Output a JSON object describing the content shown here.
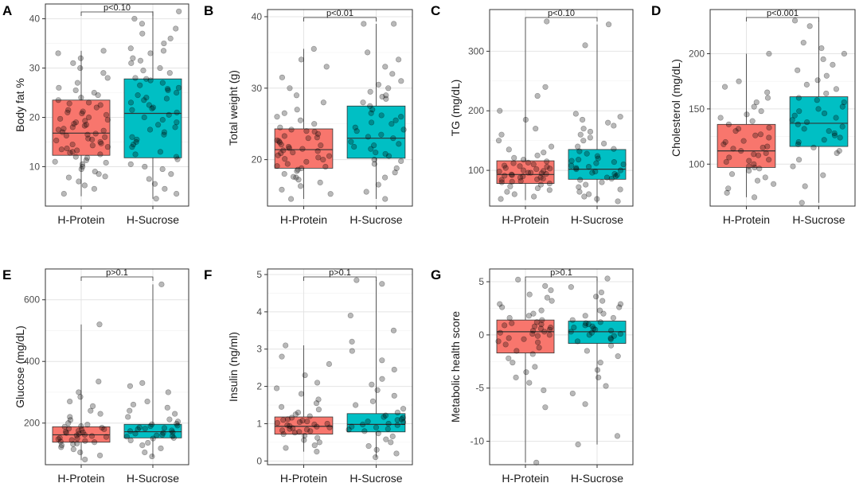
{
  "figure": {
    "fill_colors": [
      "#F8766D",
      "#00BFC4"
    ],
    "point_color": "#000000"
  },
  "chart_data": [
    {
      "id": "A",
      "type": "box",
      "panel": "A",
      "categories": [
        "H-Protein",
        "H-Sucrose"
      ],
      "ylabel": "Body fat %",
      "ylim": [
        2,
        43
      ],
      "yticks": [
        10,
        20,
        30,
        40
      ],
      "boxes": [
        {
          "name": "H-Protein",
          "q1": 12.3,
          "median": 16.8,
          "q3": 23.5,
          "min": 4.0,
          "max": 33.5
        },
        {
          "name": "H-Sucrose",
          "q1": 11.8,
          "median": 20.8,
          "q3": 27.8,
          "min": 3.5,
          "max": 41.5
        }
      ],
      "significance": "p<0.10",
      "jitter": [
        [
          4.5,
          5.5,
          6.2,
          7.0,
          7.8,
          8.5,
          9.0,
          9.5,
          10.0,
          10.5,
          11.0,
          11.3,
          11.8,
          12.0,
          12.5,
          13.0,
          13.3,
          13.7,
          14.0,
          14.3,
          14.7,
          15.0,
          15.3,
          15.7,
          16.0,
          16.3,
          16.7,
          17.0,
          17.3,
          17.7,
          18.0,
          18.3,
          18.7,
          19.0,
          19.3,
          19.7,
          20.0,
          20.5,
          21.0,
          21.5,
          22.0,
          22.5,
          23.0,
          23.5,
          24.0,
          24.5,
          25.0,
          26.0,
          27.0,
          28.0,
          29.0,
          30.0,
          31.0,
          32.0,
          33.0,
          33.5,
          12.8,
          14.5,
          16.5,
          18.5,
          20.8,
          22.8,
          8.0,
          10.8,
          13.5,
          15.5,
          17.5,
          19.5,
          21.2,
          25.5
        ],
        [
          3.5,
          4.5,
          5.5,
          6.5,
          7.5,
          8.5,
          9.5,
          10.5,
          11.5,
          12.0,
          13.0,
          14.0,
          15.0,
          16.0,
          17.0,
          18.0,
          19.0,
          20.0,
          20.5,
          21.0,
          21.5,
          22.0,
          22.5,
          23.0,
          23.5,
          24.0,
          24.5,
          25.0,
          25.5,
          26.0,
          26.5,
          27.0,
          27.5,
          28.0,
          29.0,
          30.0,
          31.0,
          32.0,
          33.0,
          34.0,
          35.0,
          36.0,
          37.0,
          38.0,
          39.0,
          40.0,
          41.5,
          12.5,
          14.5,
          16.5,
          18.5,
          19.5,
          21.8,
          23.8,
          25.8,
          27.8,
          10.0,
          15.5,
          17.5,
          29.5,
          31.5,
          33.5
        ]
      ]
    },
    {
      "id": "B",
      "type": "box",
      "panel": "B",
      "categories": [
        "H-Protein",
        "H-Sucrose"
      ],
      "ylabel": "Total weight (g)",
      "ylim": [
        13.5,
        41
      ],
      "yticks": [
        20,
        30,
        40
      ],
      "boxes": [
        {
          "name": "H-Protein",
          "q1": 18.8,
          "median": 21.4,
          "q3": 24.3,
          "min": 14.5,
          "max": 35.5
        },
        {
          "name": "H-Sucrose",
          "q1": 20.2,
          "median": 23.0,
          "q3": 27.5,
          "min": 14.5,
          "max": 39.0
        }
      ],
      "significance": "p<0.01",
      "jitter": [
        [
          14.5,
          15.2,
          15.8,
          16.3,
          16.8,
          17.2,
          17.6,
          18.0,
          18.4,
          18.8,
          19.1,
          19.4,
          19.7,
          20.0,
          20.3,
          20.6,
          20.9,
          21.2,
          21.5,
          21.8,
          22.1,
          22.4,
          22.7,
          23.0,
          23.3,
          23.6,
          23.9,
          24.2,
          24.5,
          25.0,
          25.5,
          26.0,
          26.5,
          27.0,
          28.0,
          29.0,
          30.0,
          31.5,
          33.0,
          34.0,
          35.5,
          19.0,
          20.1,
          21.0,
          22.0,
          23.1,
          17.5,
          18.6,
          21.6,
          22.6,
          24.0,
          20.5,
          21.3
        ],
        [
          14.5,
          15.5,
          16.5,
          17.5,
          18.2,
          18.8,
          19.4,
          20.0,
          20.5,
          21.0,
          21.5,
          22.0,
          22.5,
          23.0,
          23.5,
          24.0,
          24.5,
          25.0,
          25.5,
          26.0,
          26.5,
          27.0,
          27.5,
          28.0,
          28.5,
          29.0,
          29.5,
          30.0,
          31.0,
          32.0,
          33.0,
          34.0,
          35.0,
          39.0,
          39.0,
          20.8,
          22.2,
          23.2,
          24.2,
          25.2,
          26.2,
          21.8,
          19.8,
          28.8,
          30.5
        ]
      ]
    },
    {
      "id": "C",
      "type": "box",
      "panel": "C",
      "categories": [
        "H-Protein",
        "H-Sucrose"
      ],
      "ylabel": "TG (mg/dL)",
      "ylim": [
        40,
        370
      ],
      "yticks": [
        100,
        200,
        300
      ],
      "boxes": [
        {
          "name": "H-Protein",
          "q1": 78,
          "median": 93,
          "q3": 116,
          "min": 50,
          "max": 350
        },
        {
          "name": "H-Sucrose",
          "q1": 85,
          "median": 102,
          "q3": 135,
          "min": 45,
          "max": 345
        }
      ],
      "significance": "p<0.10",
      "jitter": [
        [
          52,
          56,
          60,
          64,
          67,
          70,
          73,
          76,
          78,
          80,
          82,
          84,
          86,
          88,
          90,
          92,
          94,
          96,
          98,
          100,
          102,
          104,
          106,
          108,
          110,
          112,
          115,
          118,
          121,
          125,
          130,
          135,
          140,
          150,
          160,
          170,
          185,
          200,
          225,
          240,
          350,
          88,
          91,
          95,
          99,
          85,
          81,
          103,
          107,
          113,
          96,
          93
        ],
        [
          48,
          52,
          56,
          60,
          64,
          68,
          72,
          76,
          80,
          84,
          88,
          92,
          96,
          100,
          104,
          108,
          112,
          116,
          120,
          124,
          128,
          132,
          136,
          140,
          145,
          150,
          155,
          160,
          165,
          170,
          175,
          180,
          185,
          190,
          195,
          310,
          345,
          90,
          98,
          102,
          110,
          118,
          86,
          94,
          106,
          114
        ]
      ]
    },
    {
      "id": "D",
      "type": "box",
      "panel": "D",
      "categories": [
        "H-Protein",
        "H-Sucrose"
      ],
      "ylabel": "Cholesterol (mg/dL)",
      "ylim": [
        62,
        240
      ],
      "yticks": [
        100,
        150,
        200
      ],
      "boxes": [
        {
          "name": "H-Protein",
          "q1": 97,
          "median": 112,
          "q3": 136,
          "min": 70,
          "max": 200
        },
        {
          "name": "H-Sucrose",
          "q1": 116,
          "median": 137,
          "q3": 161,
          "min": 65,
          "max": 230
        }
      ],
      "significance": "p<0.001",
      "jitter": [
        [
          70,
          74,
          78,
          82,
          85,
          88,
          91,
          94,
          97,
          100,
          103,
          106,
          109,
          112,
          115,
          118,
          121,
          124,
          127,
          130,
          133,
          136,
          139,
          142,
          145,
          148,
          152,
          156,
          160,
          165,
          170,
          175,
          200,
          108,
          114,
          120,
          126,
          132,
          98,
          104,
          110,
          116,
          96,
          102
        ],
        [
          65,
          80,
          90,
          98,
          104,
          110,
          115,
          120,
          124,
          128,
          132,
          136,
          140,
          144,
          148,
          152,
          156,
          160,
          164,
          168,
          172,
          176,
          180,
          185,
          190,
          195,
          200,
          205,
          210,
          225,
          230,
          122,
          130,
          138,
          146,
          126,
          134,
          142,
          150,
          118,
          112,
          158
        ]
      ]
    },
    {
      "id": "E",
      "type": "box",
      "panel": "E",
      "categories": [
        "H-Protein",
        "H-Sucrose"
      ],
      "ylabel": "Glucose (mg/dL)",
      "ylim": [
        65,
        700
      ],
      "yticks": [
        200,
        400,
        600
      ],
      "boxes": [
        {
          "name": "H-Protein",
          "q1": 138,
          "median": 162,
          "q3": 188,
          "min": 80,
          "max": 520
        },
        {
          "name": "H-Sucrose",
          "q1": 152,
          "median": 172,
          "q3": 196,
          "min": 90,
          "max": 650
        }
      ],
      "significance": "p>0.1",
      "jitter": [
        [
          82,
          95,
          105,
          115,
          122,
          128,
          134,
          140,
          145,
          150,
          155,
          160,
          165,
          170,
          175,
          180,
          185,
          190,
          195,
          200,
          210,
          220,
          230,
          240,
          255,
          270,
          285,
          300,
          335,
          520,
          158,
          162,
          168,
          148,
          138,
          178,
          182,
          152,
          142,
          132,
          172,
          188
        ],
        [
          92,
          105,
          118,
          128,
          136,
          144,
          150,
          156,
          162,
          168,
          174,
          180,
          186,
          192,
          198,
          205,
          212,
          220,
          230,
          240,
          250,
          260,
          270,
          300,
          320,
          330,
          650,
          166,
          170,
          176,
          158,
          152,
          184,
          190,
          160,
          182,
          196
        ]
      ]
    },
    {
      "id": "F",
      "type": "box",
      "panel": "F",
      "categories": [
        "H-Protein",
        "H-Sucrose"
      ],
      "ylabel": "Insulin (ng/ml)",
      "ylim": [
        -0.1,
        5.15
      ],
      "yticks": [
        0,
        1,
        2,
        3,
        4,
        5
      ],
      "boxes": [
        {
          "name": "H-Protein",
          "q1": 0.72,
          "median": 0.93,
          "q3": 1.18,
          "min": 0.25,
          "max": 3.1
        },
        {
          "name": "H-Sucrose",
          "q1": 0.78,
          "median": 0.98,
          "q3": 1.27,
          "min": 0.1,
          "max": 4.85
        }
      ],
      "significance": "p>0.1",
      "jitter": [
        [
          0.25,
          0.35,
          0.42,
          0.5,
          0.56,
          0.62,
          0.68,
          0.72,
          0.76,
          0.8,
          0.84,
          0.88,
          0.92,
          0.96,
          1.0,
          1.04,
          1.08,
          1.12,
          1.16,
          1.2,
          1.25,
          1.3,
          1.38,
          1.45,
          1.55,
          1.65,
          1.8,
          1.95,
          2.1,
          2.3,
          2.6,
          2.8,
          3.1,
          0.9,
          0.94,
          0.98,
          0.86,
          0.82,
          1.02,
          1.06,
          0.78,
          1.1
        ],
        [
          0.1,
          0.2,
          0.3,
          0.4,
          0.5,
          0.58,
          0.66,
          0.74,
          0.8,
          0.86,
          0.92,
          0.98,
          1.04,
          1.1,
          1.16,
          1.22,
          1.3,
          1.4,
          1.5,
          1.6,
          1.75,
          1.9,
          2.05,
          2.2,
          2.45,
          2.7,
          2.95,
          3.2,
          3.5,
          3.9,
          4.75,
          4.85,
          0.96,
          1.0,
          0.9,
          1.06,
          0.84,
          1.12,
          1.18
        ]
      ]
    },
    {
      "id": "G",
      "type": "box",
      "panel": "G",
      "categories": [
        "H-Protein",
        "H-Sucrose"
      ],
      "ylabel": "Metabolic health score",
      "ylim": [
        -12.2,
        6.2
      ],
      "yticks": [
        -10,
        -5,
        0,
        5
      ],
      "boxes": [
        {
          "name": "H-Protein",
          "q1": -1.7,
          "median": 0.3,
          "q3": 1.4,
          "min": -12.0,
          "max": 5.2
        },
        {
          "name": "H-Sucrose",
          "q1": -0.8,
          "median": 0.3,
          "q3": 1.3,
          "min": -10.3,
          "max": 5.3
        }
      ],
      "significance": "p>0.1",
      "jitter": [
        [
          -12.0,
          -6.8,
          -5.2,
          -4.5,
          -4.0,
          -3.5,
          -3.0,
          -2.6,
          -2.2,
          -1.8,
          -1.5,
          -1.2,
          -0.9,
          -0.6,
          -0.3,
          0.0,
          0.2,
          0.4,
          0.6,
          0.8,
          1.0,
          1.2,
          1.4,
          1.6,
          1.8,
          2.0,
          2.3,
          2.6,
          2.9,
          3.2,
          3.5,
          3.8,
          4.2,
          4.6,
          5.2,
          0.1,
          0.3,
          0.5,
          -0.1,
          -0.4,
          0.7,
          0.9,
          -0.7,
          1.1
        ],
        [
          -10.3,
          -9.5,
          -6.5,
          -5.5,
          -4.8,
          -4.0,
          -3.3,
          -2.6,
          -2.0,
          -1.5,
          -1.0,
          -0.6,
          -0.3,
          0.0,
          0.2,
          0.4,
          0.6,
          0.8,
          1.0,
          1.2,
          1.4,
          1.6,
          1.8,
          2.0,
          2.3,
          2.6,
          2.9,
          3.2,
          3.6,
          4.0,
          4.5,
          5.3,
          0.1,
          0.3,
          0.5,
          -0.1,
          0.7,
          0.9,
          -0.4,
          1.1
        ]
      ]
    }
  ]
}
